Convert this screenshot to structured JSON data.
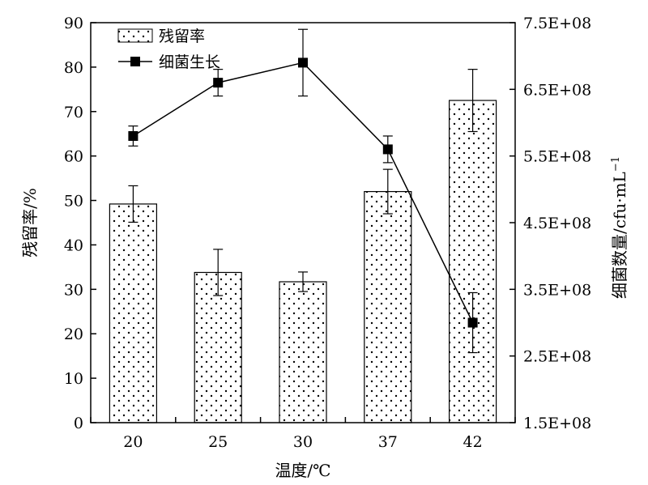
{
  "chart_data": {
    "type": "bar",
    "categories": [
      "20",
      "25",
      "30",
      "37",
      "42"
    ],
    "xlabel": "温度/℃",
    "ylabel": "残留率/%",
    "y2label_main": "细菌数量/cfu·mL",
    "y2label_sup": "−1",
    "ylim": [
      0,
      90
    ],
    "yticks": [
      "0",
      "10",
      "20",
      "30",
      "40",
      "50",
      "60",
      "70",
      "80",
      "90"
    ],
    "y2lim": [
      150000000,
      750000000
    ],
    "y2ticks": [
      "1.5E+08",
      "2.5E+08",
      "3.5E+08",
      "4.5E+08",
      "5.5E+08",
      "6.5E+08",
      "7.5E+08"
    ],
    "grid": false,
    "legend_position": "top-left",
    "series": [
      {
        "name": "残留率",
        "type": "bar",
        "axis": "left",
        "pattern": "dotted",
        "values": [
          49.2,
          33.8,
          31.7,
          52.0,
          72.5
        ],
        "errors": [
          4.1,
          5.2,
          2.2,
          5.0,
          7.0
        ]
      },
      {
        "name": "细菌生长",
        "type": "line",
        "axis": "right",
        "marker": "square",
        "values": [
          580000000,
          660000000,
          690000000,
          560000000,
          300000000
        ],
        "errors": [
          15000000,
          20000000,
          50000000,
          20000000,
          45000000
        ]
      }
    ]
  }
}
